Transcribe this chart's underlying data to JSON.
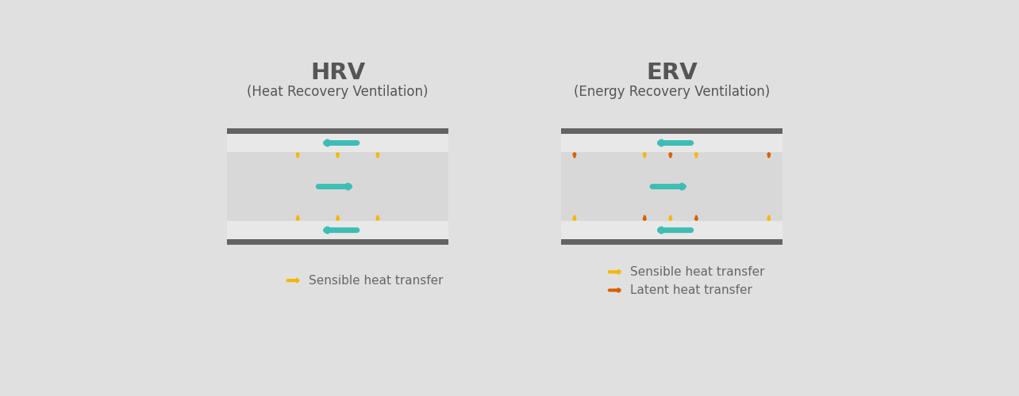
{
  "bg_color": "#e0e0e0",
  "white_panel": "#f5f5f5",
  "title_color": "#555555",
  "text_color": "#666666",
  "hrv_title": "HRV",
  "hrv_subtitle": "(Heat Recovery Ventilation)",
  "erv_title": "ERV",
  "erv_subtitle": "(Energy Recovery Ventilation)",
  "teal_color": "#3dbdb5",
  "yellow_color": "#f5b800",
  "orange_color": "#d95f00",
  "dark_gray": "#636363",
  "mid_gray": "#898989",
  "box_fill": "#f0f0f0",
  "middle_fill": "#d8d8d8",
  "upper_lower_fill": "#e8e8e8",
  "legend_sensible": "Sensible heat transfer",
  "legend_latent": "Latent heat transfer"
}
